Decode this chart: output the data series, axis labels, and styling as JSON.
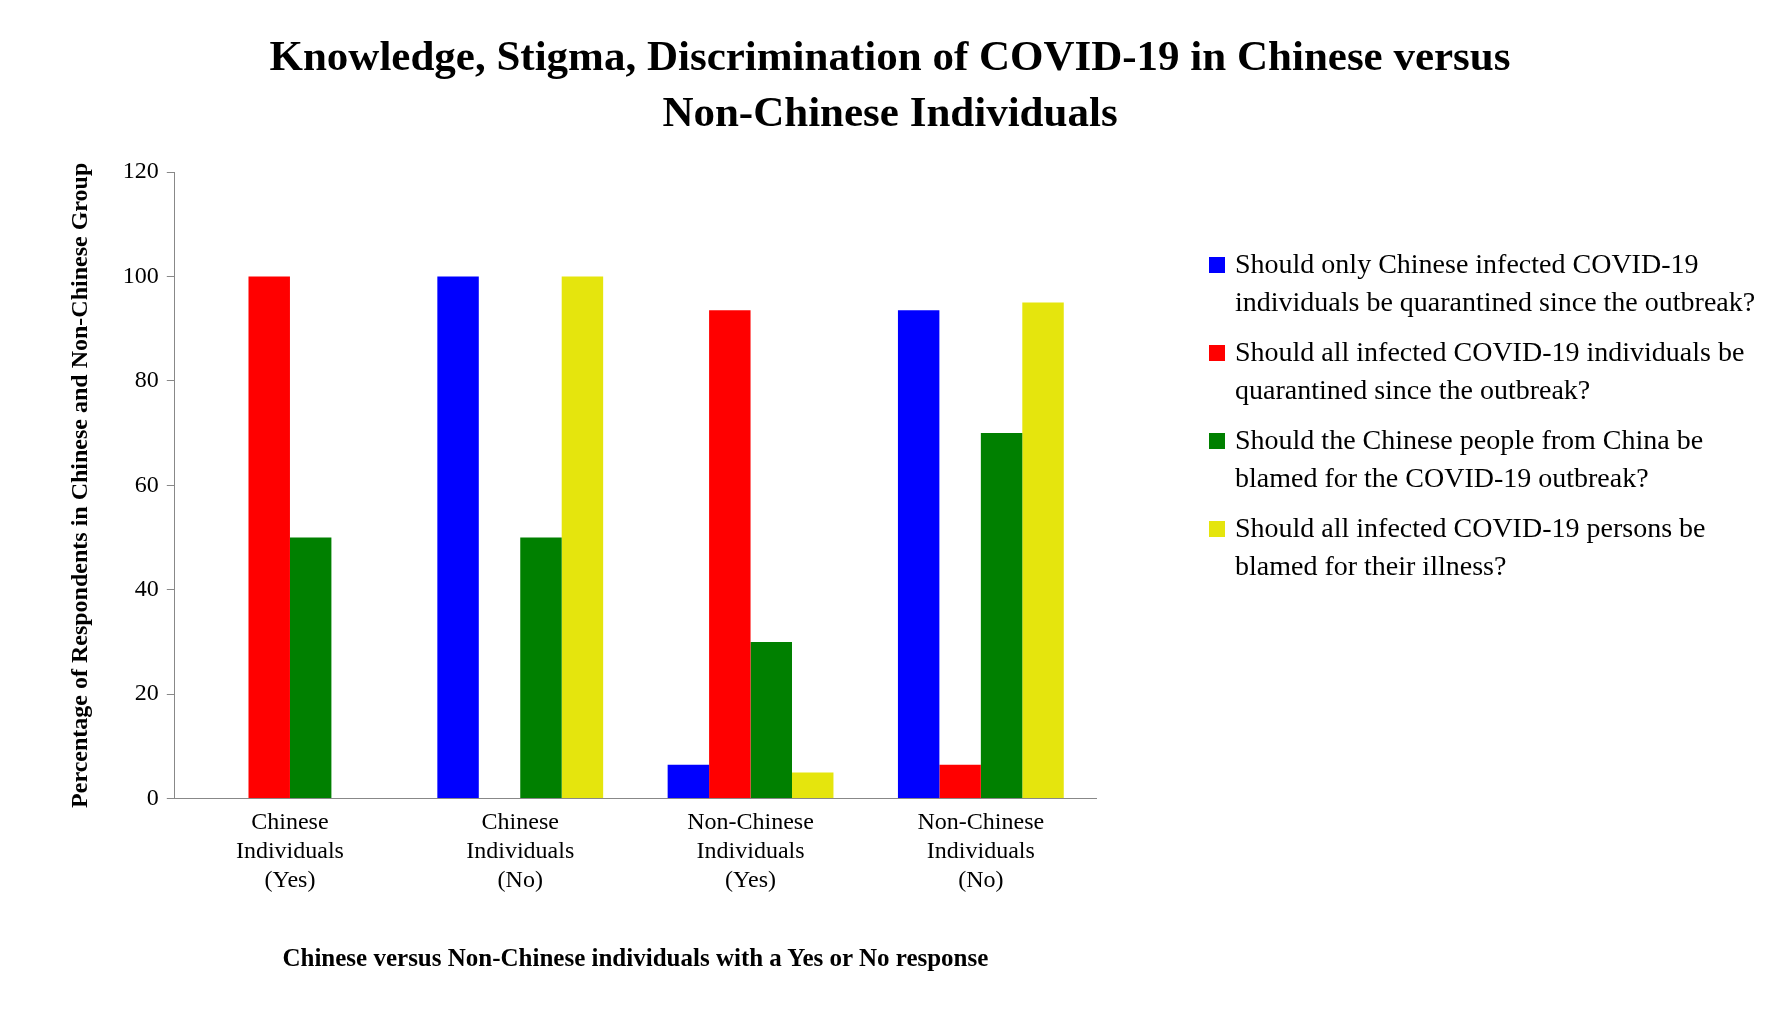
{
  "chart_data": {
    "type": "bar",
    "title": "Knowledge, Stigma, Discrimination of COVID-19 in Chinese versus Non-Chinese Individuals",
    "xlabel": "Chinese versus Non-Chinese individuals with a Yes or No response",
    "ylabel": "Percentage of Respondents in Chinese and Non-Chinese Group",
    "categories": [
      "Chinese Individuals (Yes)",
      "Chinese Individuals (No)",
      "Non-Chinese Individuals (Yes)",
      "Non-Chinese Individuals (No)"
    ],
    "series": [
      {
        "name": "Should only Chinese infected COVID-19 individuals be quarantined since the outbreak?",
        "color": "#0000ff",
        "values": [
          0,
          100,
          6.5,
          93.5
        ]
      },
      {
        "name": "Should all infected COVID-19 individuals be quarantined since the outbreak?",
        "color": "#ff0000",
        "values": [
          100,
          0,
          93.5,
          6.5
        ]
      },
      {
        "name": "Should the Chinese people from China be blamed for the COVID-19 outbreak?",
        "color": "#008000",
        "values": [
          50,
          50,
          30,
          70
        ]
      },
      {
        "name": "Should all infected COVID-19 persons be blamed for their illness?",
        "color": "#e5e50d",
        "values": [
          0,
          100,
          5,
          95
        ]
      }
    ],
    "ylim": [
      0,
      120
    ],
    "yticks": [
      0,
      20,
      40,
      60,
      80,
      100,
      120
    ],
    "grid": false,
    "legend": "right"
  }
}
